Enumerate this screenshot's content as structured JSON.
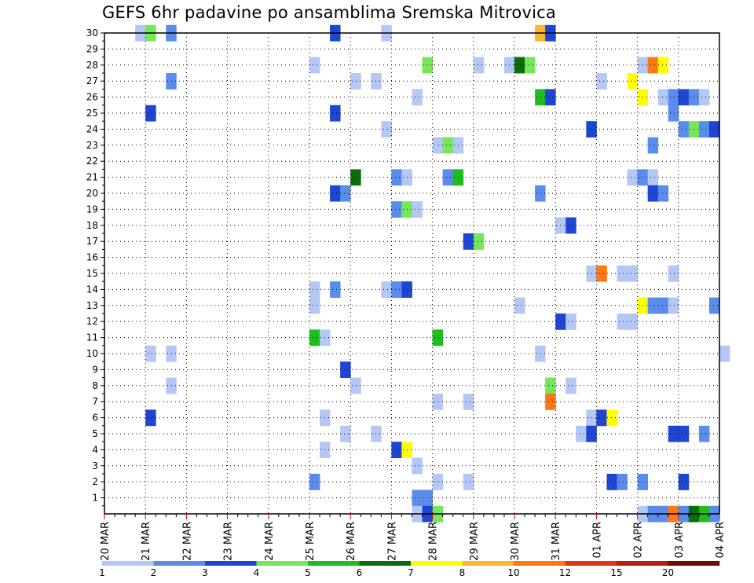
{
  "chart_data": {
    "type": "heatmap",
    "title": "GEFS 6hr padavine po ansamblima Sremska Mitrovica",
    "xlabel": "",
    "ylabel": "",
    "x_range": [
      "2021-03-20T00",
      "2021-04-04T00"
    ],
    "y_ticks": [
      1,
      2,
      3,
      4,
      5,
      6,
      7,
      8,
      9,
      10,
      11,
      12,
      13,
      14,
      15,
      16,
      17,
      18,
      19,
      20,
      21,
      22,
      23,
      24,
      25,
      26,
      27,
      28,
      29,
      30
    ],
    "x_tick_labels": [
      "20 MAR",
      "21 MAR",
      "22 MAR",
      "23 MAR",
      "24 MAR",
      "25 MAR",
      "26 MAR",
      "27 MAR",
      "28 MAR",
      "29 MAR",
      "30 MAR",
      "31 MAR",
      "01 APR",
      "02 APR",
      "03 APR",
      "04 APR"
    ],
    "grid": true,
    "colorbar": {
      "position": "bottom",
      "labels": [
        "1",
        "2",
        "3",
        "4",
        "5",
        "6",
        "7",
        "8",
        "10",
        "12",
        "15",
        "20"
      ],
      "bins": [
        {
          "from": 1,
          "to": 2,
          "color": "#b4c8f5"
        },
        {
          "from": 2,
          "to": 3,
          "color": "#5a8ceb"
        },
        {
          "from": 3,
          "to": 4,
          "color": "#1e46d2"
        },
        {
          "from": 4,
          "to": 5,
          "color": "#78e65a"
        },
        {
          "from": 5,
          "to": 6,
          "color": "#1ebe1e"
        },
        {
          "from": 6,
          "to": 7,
          "color": "#0a6e0a"
        },
        {
          "from": 7,
          "to": 8,
          "color": "#ffff00"
        },
        {
          "from": 8,
          "to": 10,
          "color": "#ffb432"
        },
        {
          "from": 10,
          "to": 12,
          "color": "#ff7814"
        },
        {
          "from": 12,
          "to": 15,
          "color": "#e63214"
        },
        {
          "from": 15,
          "to": 20,
          "color": "#b41e14"
        },
        {
          "from": 20,
          "to": 30,
          "color": "#6e0a0a"
        }
      ]
    },
    "cells": [
      {
        "m": 30,
        "t": "2021-03-20T18",
        "v": 1.5
      },
      {
        "m": 30,
        "t": "2021-03-21T00",
        "v": 4.5
      },
      {
        "m": 30,
        "t": "2021-03-21T12",
        "v": 2.5
      },
      {
        "m": 30,
        "t": "2021-03-25T12",
        "v": 3.5
      },
      {
        "m": 30,
        "t": "2021-03-26T18",
        "v": 1.5
      },
      {
        "m": 30,
        "t": "2021-03-30T12",
        "v": 9
      },
      {
        "m": 30,
        "t": "2021-03-30T18",
        "v": 3.5
      },
      {
        "m": 28,
        "t": "2021-03-25T00",
        "v": 1.5
      },
      {
        "m": 28,
        "t": "2021-03-27T18",
        "v": 4.5
      },
      {
        "m": 28,
        "t": "2021-03-29T00",
        "v": 1.5
      },
      {
        "m": 28,
        "t": "2021-03-29T18",
        "v": 1.5
      },
      {
        "m": 28,
        "t": "2021-03-30T00",
        "v": 6.5
      },
      {
        "m": 28,
        "t": "2021-03-30T06",
        "v": 4.5
      },
      {
        "m": 28,
        "t": "2021-04-02T00",
        "v": 1.5
      },
      {
        "m": 28,
        "t": "2021-04-02T06",
        "v": 11
      },
      {
        "m": 28,
        "t": "2021-04-02T12",
        "v": 7.5
      },
      {
        "m": 27,
        "t": "2021-03-21T12",
        "v": 2.5
      },
      {
        "m": 27,
        "t": "2021-03-26T00",
        "v": 1.5
      },
      {
        "m": 27,
        "t": "2021-03-26T12",
        "v": 1.5
      },
      {
        "m": 27,
        "t": "2021-04-01T00",
        "v": 1.5
      },
      {
        "m": 27,
        "t": "2021-04-01T18",
        "v": 7.5
      },
      {
        "m": 26,
        "t": "2021-03-27T12",
        "v": 1.5
      },
      {
        "m": 26,
        "t": "2021-03-30T12",
        "v": 5.5
      },
      {
        "m": 26,
        "t": "2021-03-30T18",
        "v": 3.5
      },
      {
        "m": 26,
        "t": "2021-04-02T00",
        "v": 7.5
      },
      {
        "m": 26,
        "t": "2021-04-02T12",
        "v": 1.5
      },
      {
        "m": 26,
        "t": "2021-04-02T18",
        "v": 2.5
      },
      {
        "m": 26,
        "t": "2021-04-03T00",
        "v": 3.5
      },
      {
        "m": 26,
        "t": "2021-04-03T06",
        "v": 2.5
      },
      {
        "m": 26,
        "t": "2021-04-03T12",
        "v": 1.5
      },
      {
        "m": 25,
        "t": "2021-03-21T00",
        "v": 3.5
      },
      {
        "m": 25,
        "t": "2021-03-25T12",
        "v": 3.5
      },
      {
        "m": 25,
        "t": "2021-04-02T18",
        "v": 2.5
      },
      {
        "m": 24,
        "t": "2021-03-26T18",
        "v": 1.5
      },
      {
        "m": 24,
        "t": "2021-03-31T18",
        "v": 3.5
      },
      {
        "m": 24,
        "t": "2021-04-03T00",
        "v": 2.5
      },
      {
        "m": 24,
        "t": "2021-04-03T06",
        "v": 4.5
      },
      {
        "m": 24,
        "t": "2021-04-03T12",
        "v": 2.5
      },
      {
        "m": 24,
        "t": "2021-04-03T18",
        "v": 3.5
      },
      {
        "m": 23,
        "t": "2021-03-28T00",
        "v": 1.5
      },
      {
        "m": 23,
        "t": "2021-03-28T06",
        "v": 4.5
      },
      {
        "m": 23,
        "t": "2021-03-28T12",
        "v": 1.5
      },
      {
        "m": 23,
        "t": "2021-04-02T06",
        "v": 2.5
      },
      {
        "m": 21,
        "t": "2021-03-26T00",
        "v": 6.5
      },
      {
        "m": 21,
        "t": "2021-03-27T00",
        "v": 2.5
      },
      {
        "m": 21,
        "t": "2021-03-27T06",
        "v": 1.5
      },
      {
        "m": 21,
        "t": "2021-03-28T06",
        "v": 2.5
      },
      {
        "m": 21,
        "t": "2021-03-28T12",
        "v": 5.5
      },
      {
        "m": 21,
        "t": "2021-04-01T18",
        "v": 1.5
      },
      {
        "m": 21,
        "t": "2021-04-02T00",
        "v": 2.5
      },
      {
        "m": 21,
        "t": "2021-04-02T06",
        "v": 1.5
      },
      {
        "m": 20,
        "t": "2021-03-25T12",
        "v": 3.5
      },
      {
        "m": 20,
        "t": "2021-03-25T18",
        "v": 2.5
      },
      {
        "m": 20,
        "t": "2021-03-30T12",
        "v": 2.5
      },
      {
        "m": 20,
        "t": "2021-04-02T06",
        "v": 3.5
      },
      {
        "m": 20,
        "t": "2021-04-02T12",
        "v": 2.5
      },
      {
        "m": 19,
        "t": "2021-03-27T00",
        "v": 2.5
      },
      {
        "m": 19,
        "t": "2021-03-27T06",
        "v": 4.5
      },
      {
        "m": 19,
        "t": "2021-03-27T12",
        "v": 1.5
      },
      {
        "m": 18,
        "t": "2021-03-31T00",
        "v": 1.5
      },
      {
        "m": 18,
        "t": "2021-03-31T06",
        "v": 3.5
      },
      {
        "m": 17,
        "t": "2021-03-28T18",
        "v": 3.5
      },
      {
        "m": 17,
        "t": "2021-03-29T00",
        "v": 4.5
      },
      {
        "m": 15,
        "t": "2021-03-31T18",
        "v": 1.5
      },
      {
        "m": 15,
        "t": "2021-04-01T00",
        "v": 11
      },
      {
        "m": 15,
        "t": "2021-04-01T12",
        "v": 1.5
      },
      {
        "m": 15,
        "t": "2021-04-01T18",
        "v": 1.5
      },
      {
        "m": 15,
        "t": "2021-04-02T18",
        "v": 1.5
      },
      {
        "m": 14,
        "t": "2021-03-25T00",
        "v": 1.5
      },
      {
        "m": 14,
        "t": "2021-03-25T12",
        "v": 2.5
      },
      {
        "m": 14,
        "t": "2021-03-26T18",
        "v": 1.5
      },
      {
        "m": 14,
        "t": "2021-03-27T00",
        "v": 2.5
      },
      {
        "m": 14,
        "t": "2021-03-27T06",
        "v": 3.5
      },
      {
        "m": 13,
        "t": "2021-03-25T00",
        "v": 1.5
      },
      {
        "m": 13,
        "t": "2021-03-30T00",
        "v": 1.5
      },
      {
        "m": 13,
        "t": "2021-04-02T00",
        "v": 7.5
      },
      {
        "m": 13,
        "t": "2021-04-02T06",
        "v": 2.5
      },
      {
        "m": 13,
        "t": "2021-04-02T12",
        "v": 2.5
      },
      {
        "m": 13,
        "t": "2021-04-02T18",
        "v": 1.5
      },
      {
        "m": 13,
        "t": "2021-04-03T18",
        "v": 2.5
      },
      {
        "m": 12,
        "t": "2021-03-31T00",
        "v": 3.5
      },
      {
        "m": 12,
        "t": "2021-03-31T06",
        "v": 1.5
      },
      {
        "m": 12,
        "t": "2021-04-01T12",
        "v": 1.5
      },
      {
        "m": 12,
        "t": "2021-04-01T18",
        "v": 1.5
      },
      {
        "m": 11,
        "t": "2021-03-25T00",
        "v": 5.5
      },
      {
        "m": 11,
        "t": "2021-03-25T06",
        "v": 1.5
      },
      {
        "m": 11,
        "t": "2021-03-28T00",
        "v": 5.5
      },
      {
        "m": 10,
        "t": "2021-03-21T00",
        "v": 1.5
      },
      {
        "m": 10,
        "t": "2021-03-21T12",
        "v": 1.5
      },
      {
        "m": 10,
        "t": "2021-03-30T12",
        "v": 1.5
      },
      {
        "m": 10,
        "t": "2021-04-04T00",
        "v": 1.5
      },
      {
        "m": 9,
        "t": "2021-03-25T18",
        "v": 3.5
      },
      {
        "m": 8,
        "t": "2021-03-21T12",
        "v": 1.5
      },
      {
        "m": 8,
        "t": "2021-03-26T00",
        "v": 1.5
      },
      {
        "m": 8,
        "t": "2021-03-30T18",
        "v": 4.5
      },
      {
        "m": 8,
        "t": "2021-03-31T06",
        "v": 1.5
      },
      {
        "m": 7,
        "t": "2021-03-28T00",
        "v": 1.5
      },
      {
        "m": 7,
        "t": "2021-03-28T18",
        "v": 1.5
      },
      {
        "m": 7,
        "t": "2021-03-30T18",
        "v": 11
      },
      {
        "m": 6,
        "t": "2021-03-21T00",
        "v": 3.5
      },
      {
        "m": 6,
        "t": "2021-03-25T06",
        "v": 1.5
      },
      {
        "m": 6,
        "t": "2021-03-31T18",
        "v": 1.5
      },
      {
        "m": 6,
        "t": "2021-04-01T00",
        "v": 3.5
      },
      {
        "m": 6,
        "t": "2021-04-01T06",
        "v": 7.5
      },
      {
        "m": 5,
        "t": "2021-03-25T18",
        "v": 1.5
      },
      {
        "m": 5,
        "t": "2021-03-26T12",
        "v": 1.5
      },
      {
        "m": 5,
        "t": "2021-03-31T12",
        "v": 1.5
      },
      {
        "m": 5,
        "t": "2021-03-31T18",
        "v": 3.5
      },
      {
        "m": 5,
        "t": "2021-04-02T18",
        "v": 3.5
      },
      {
        "m": 5,
        "t": "2021-04-03T00",
        "v": 3.5
      },
      {
        "m": 5,
        "t": "2021-04-03T12",
        "v": 2.5
      },
      {
        "m": 4,
        "t": "2021-03-25T06",
        "v": 1.5
      },
      {
        "m": 4,
        "t": "2021-03-27T00",
        "v": 3.5
      },
      {
        "m": 4,
        "t": "2021-03-27T06",
        "v": 7.5
      },
      {
        "m": 3,
        "t": "2021-03-27T12",
        "v": 1.5
      },
      {
        "m": 2,
        "t": "2021-03-25T00",
        "v": 2.5
      },
      {
        "m": 2,
        "t": "2021-03-28T00",
        "v": 1.5
      },
      {
        "m": 2,
        "t": "2021-03-28T18",
        "v": 1.5
      },
      {
        "m": 2,
        "t": "2021-04-01T06",
        "v": 3.5
      },
      {
        "m": 2,
        "t": "2021-04-01T12",
        "v": 2.5
      },
      {
        "m": 2,
        "t": "2021-04-02T00",
        "v": 2.5
      },
      {
        "m": 2,
        "t": "2021-04-03T00",
        "v": 3.5
      },
      {
        "m": 1,
        "t": "2021-03-27T12",
        "v": 2.5
      },
      {
        "m": 1,
        "t": "2021-03-27T18",
        "v": 2.5
      },
      {
        "m": 0,
        "t": "2021-03-27T12",
        "v": 1.5
      },
      {
        "m": 0,
        "t": "2021-03-27T18",
        "v": 3.5
      },
      {
        "m": 0,
        "t": "2021-03-28T00",
        "v": 4.5
      },
      {
        "m": 0,
        "t": "2021-04-02T00",
        "v": 1.5
      },
      {
        "m": 0,
        "t": "2021-04-02T06",
        "v": 2.5
      },
      {
        "m": 0,
        "t": "2021-04-02T12",
        "v": 2.5
      },
      {
        "m": 0,
        "t": "2021-04-02T18",
        "v": 11
      },
      {
        "m": 0,
        "t": "2021-04-03T00",
        "v": 2.5
      },
      {
        "m": 0,
        "t": "2021-04-03T06",
        "v": 6.5
      },
      {
        "m": 0,
        "t": "2021-04-03T12",
        "v": 5.5
      },
      {
        "m": 0,
        "t": "2021-04-03T18",
        "v": 2.5
      }
    ]
  }
}
